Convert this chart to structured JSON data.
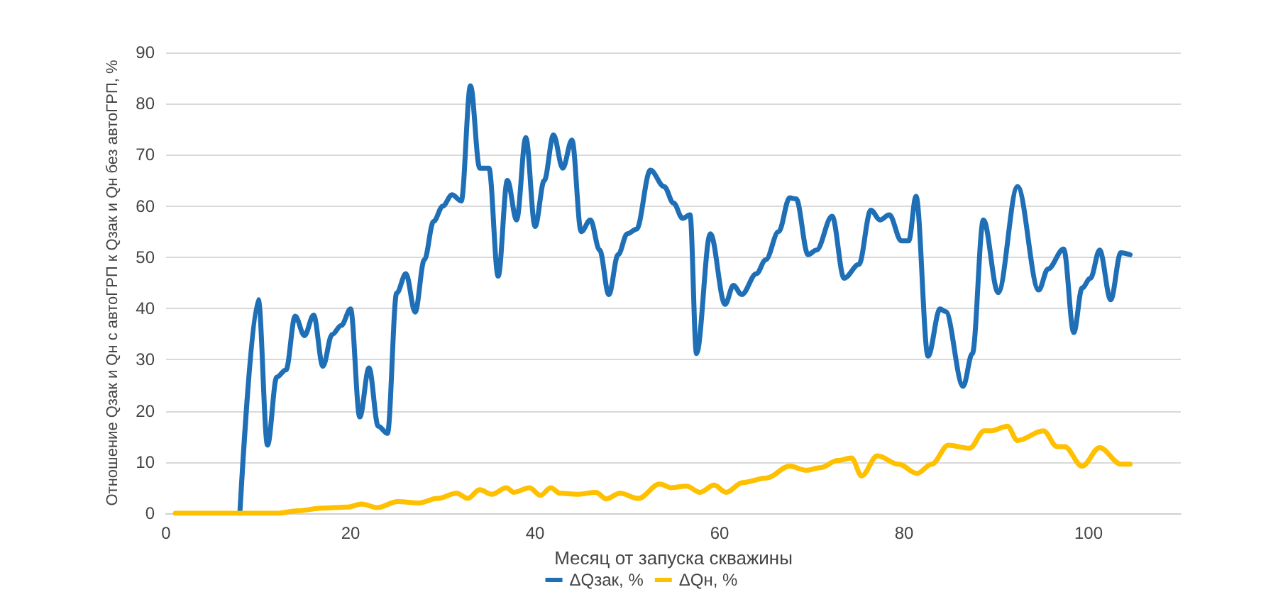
{
  "chart_data": {
    "type": "line",
    "xlabel": "Месяц от запуска скважины",
    "ylabel": "Отношение Qзак и Qн с автоГРП к Qзак и Qн без автоГРП, %",
    "xlim": [
      0,
      110
    ],
    "xticks": [
      0,
      20,
      40,
      60,
      80,
      100
    ],
    "ylim": [
      0,
      90
    ],
    "yticks": [
      0,
      10,
      20,
      30,
      40,
      50,
      60,
      70,
      80,
      90
    ],
    "grid": "y",
    "legend": "bottom",
    "marker": "none",
    "line_style": "solid",
    "series": [
      {
        "name": "ΔQзак, %",
        "color": "#1f6fb6",
        "x": [
          8,
          10,
          11,
          12,
          13,
          14,
          15,
          16,
          17,
          18,
          19,
          20,
          21,
          22,
          23,
          24,
          25,
          26,
          27,
          28,
          29,
          30,
          31,
          32,
          33,
          34,
          35,
          36,
          37,
          38,
          39,
          40,
          41,
          42,
          43,
          44,
          45,
          46,
          47,
          48,
          49,
          50,
          51,
          52.5,
          54,
          55,
          56,
          56.8,
          57.5,
          59,
          60.6,
          61.5,
          62.4,
          64,
          65,
          66.4,
          67.6,
          68.3,
          69.6,
          70.5,
          72.2,
          73.5,
          75.1,
          76.4,
          77.4,
          78.4,
          79.7,
          80.5,
          81.3,
          82.6,
          83.9,
          84.5,
          86.4,
          87.4,
          88.6,
          90.2,
          92.3,
          94.6,
          95.6,
          97.3,
          98.4,
          99.3,
          100.2,
          101.2,
          102.4,
          103.5,
          104.5
        ],
        "values": [
          0,
          41.7,
          13.3,
          26.6,
          28,
          38.5,
          34.7,
          38.7,
          28.7,
          34.9,
          36.7,
          39.9,
          18.8,
          28.4,
          17,
          15.6,
          43,
          46.8,
          39.3,
          49.5,
          57,
          60,
          62.2,
          61,
          83.5,
          67.4,
          67.4,
          46.3,
          65,
          57.3,
          73.4,
          56,
          65,
          73.9,
          67.4,
          72.9,
          55,
          57.3,
          51.4,
          42.7,
          50.5,
          54.6,
          55.5,
          67,
          63.8,
          60.6,
          57.6,
          58.3,
          31.2,
          54.6,
          40.8,
          44.5,
          42.7,
          46.8,
          49.5,
          55,
          61.6,
          61.4,
          50.5,
          51.4,
          58,
          45.9,
          48.6,
          59.2,
          57.3,
          58.3,
          53.2,
          53.2,
          61.9,
          30.7,
          39.9,
          39.4,
          24.8,
          31.2,
          57.3,
          43.1,
          63.8,
          43.6,
          47.7,
          51.6,
          35.3,
          44,
          45.9,
          51.4,
          41.7,
          50.9,
          50.5
        ]
      },
      {
        "name": "ΔQн, %",
        "color": "#ffc000",
        "x": [
          1,
          8,
          12,
          14.3,
          16.9,
          19.7,
          21.2,
          22.9,
          25.1,
          27.4,
          29.4,
          31.5,
          32.7,
          34,
          35.3,
          36.9,
          37.7,
          39.4,
          40.6,
          41.7,
          42.7,
          44.6,
          46.6,
          47.7,
          49.2,
          51.2,
          53.5,
          54.8,
          56.4,
          57.9,
          59.4,
          60.7,
          62.5,
          65.1,
          67.6,
          69.4,
          70.9,
          72.8,
          74.3,
          75.4,
          77.1,
          79.4,
          81.4,
          83,
          84.8,
          87.1,
          88.7,
          89.4,
          91.2,
          92.3,
          95.1,
          96.6,
          97.4,
          99.3,
          101.2,
          103.5,
          104.5
        ],
        "values": [
          0,
          0,
          0,
          0.5,
          1,
          1.2,
          1.8,
          1.1,
          2.3,
          2,
          2.9,
          3.9,
          2.9,
          4.6,
          3.7,
          5,
          4.1,
          5,
          3.5,
          5,
          3.9,
          3.7,
          4.1,
          2.8,
          3.9,
          2.9,
          5.7,
          5,
          5.3,
          4.1,
          5.5,
          4.1,
          6,
          6.9,
          9.2,
          8.4,
          8.9,
          10.3,
          10.8,
          7.3,
          11.2,
          9.6,
          7.8,
          9.6,
          13.3,
          12.7,
          16.1,
          16.1,
          17,
          14.2,
          16.1,
          13,
          13,
          9.2,
          12.8,
          9.6,
          9.6
        ]
      }
    ]
  }
}
